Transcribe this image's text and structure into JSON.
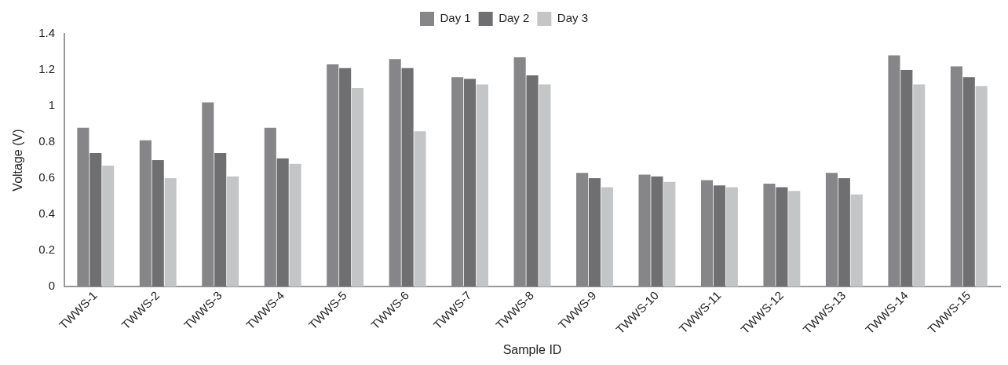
{
  "chart_data": {
    "type": "bar",
    "xlabel": "Sample ID",
    "ylabel": "Voltage (V)",
    "categories": [
      "TWWS-1",
      "TWWS-2",
      "TWWS-3",
      "TWWS-4",
      "TWWS-5",
      "TWWS-6",
      "TWWS-7",
      "TWWS-8",
      "TWWS-9",
      "TWWS-10",
      "TWWS-11",
      "TWWS-12",
      "TWWS-13",
      "TWWS-14",
      "TWWS-15"
    ],
    "series": [
      {
        "name": "Day 1",
        "color": "#868688",
        "values": [
          0.88,
          0.81,
          1.02,
          0.88,
          1.23,
          1.26,
          1.16,
          1.27,
          0.63,
          0.62,
          0.59,
          0.57,
          0.63,
          1.28,
          1.22
        ]
      },
      {
        "name": "Day 2",
        "color": "#6f6f71",
        "values": [
          0.74,
          0.7,
          0.74,
          0.71,
          1.21,
          1.21,
          1.15,
          1.17,
          0.6,
          0.61,
          0.56,
          0.55,
          0.6,
          1.2,
          1.16
        ]
      },
      {
        "name": "Day 3",
        "color": "#c4c5c7",
        "values": [
          0.67,
          0.6,
          0.61,
          0.68,
          1.1,
          0.86,
          1.12,
          1.12,
          0.55,
          0.58,
          0.55,
          0.53,
          0.51,
          1.12,
          1.11
        ]
      }
    ],
    "ylim": [
      0,
      1.4
    ],
    "yticks": [
      0,
      0.2,
      0.4,
      0.6,
      0.8,
      1,
      1.2,
      1.4
    ],
    "grid": false,
    "legend": "top"
  }
}
